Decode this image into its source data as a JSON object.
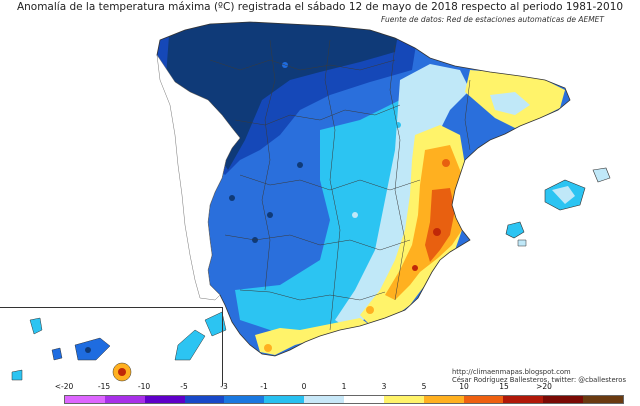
{
  "map": {
    "title": "Anomalía de la temperatura máxima (ºC) registrada el sábado 12 de mayo de 2018 respecto al periodo 1981-2010",
    "source": "Fuente de datos: Red de estaciones automaticas de AEMET",
    "credit_url": "http://climaenmapas.blogspot.com",
    "credit_author": "César Rodríguez Ballesteros, twitter: @cballesteros",
    "region": "España peninsular, Baleares y Canarias"
  },
  "legend": {
    "ticks": [
      "<-20",
      "-15",
      "-10",
      "-5",
      "-3",
      "-1",
      "0",
      "1",
      "3",
      "5",
      "10",
      "15",
      ">20"
    ],
    "colors": [
      "#dd66ff",
      "#a830e8",
      "#5f00c8",
      "#1848c8",
      "#1a78e0",
      "#28c0f0",
      "#c8e8f8",
      "#ffffff",
      "#fff36a",
      "#ffb020",
      "#ee6010",
      "#b01808",
      "#7a0a04",
      "#6a3a10"
    ]
  },
  "palette": {
    "darknavy": "#0f3a78",
    "navy": "#1548b8",
    "blue": "#1e6ce0",
    "cyan": "#2cc4f2",
    "lightcyan": "#b8e6f8",
    "white": "#ffffff",
    "yellow": "#fff36a",
    "orange": "#ffb020",
    "darkorange": "#e86010",
    "red": "#c02808"
  }
}
